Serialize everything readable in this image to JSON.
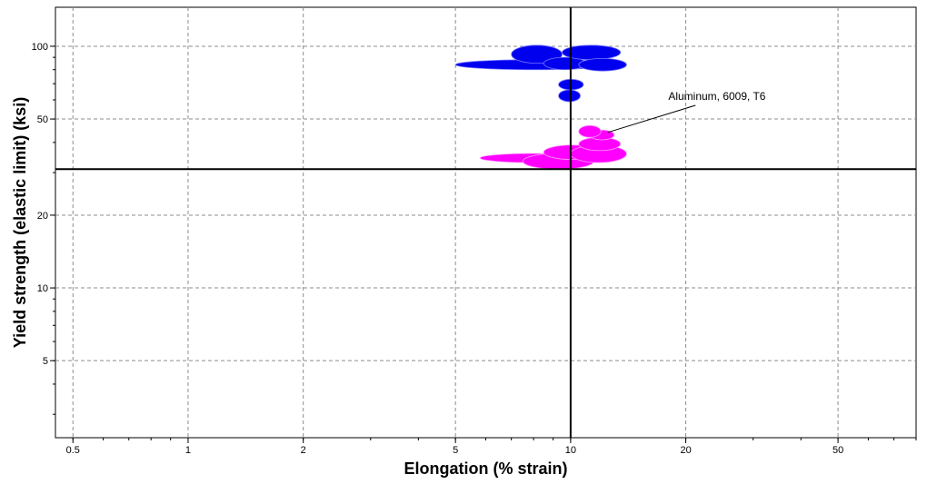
{
  "chart_data": {
    "type": "scatter",
    "xlabel": "Elongation (% strain)",
    "ylabel": "Yield strength (elastic limit) (ksi)",
    "x_scale": "log",
    "y_scale": "log",
    "xlim": [
      0.45,
      80
    ],
    "ylim": [
      2.4,
      145
    ],
    "grid": true,
    "x_ticks": [
      {
        "value": 0.5,
        "label": "0.5"
      },
      {
        "value": 1,
        "label": "1"
      },
      {
        "value": 2,
        "label": "2"
      },
      {
        "value": 5,
        "label": "5"
      },
      {
        "value": 10,
        "label": "10"
      },
      {
        "value": 20,
        "label": "20"
      },
      {
        "value": 50,
        "label": "50"
      }
    ],
    "y_ticks": [
      {
        "value": 5,
        "label": "5"
      },
      {
        "value": 10,
        "label": "10"
      },
      {
        "value": 20,
        "label": "20"
      },
      {
        "value": 50,
        "label": "50"
      },
      {
        "value": 100,
        "label": "100"
      }
    ],
    "reference_lines": {
      "x": 10,
      "y": 31
    },
    "series": [
      {
        "color": "#0000ee",
        "bubbles": [
          {
            "x_range": [
              5,
              13
            ],
            "y_range": [
              80,
              88
            ]
          },
          {
            "x_range": [
              7,
              9.5
            ],
            "y_range": [
              85,
              101
            ]
          },
          {
            "x_range": [
              8.5,
              11
            ],
            "y_range": [
              80,
              90
            ]
          },
          {
            "x_range": [
              9.5,
              13.5
            ],
            "y_range": [
              88,
              101
            ]
          },
          {
            "x_range": [
              10.5,
              14
            ],
            "y_range": [
              79,
              89
            ]
          },
          {
            "x_range": [
              9.3,
              10.8
            ],
            "y_range": [
              66,
              73
            ]
          },
          {
            "x_range": [
              9.3,
              10.6
            ],
            "y_range": [
              59,
              66
            ]
          }
        ]
      },
      {
        "color": "#ff00ff",
        "bubbles": [
          {
            "x_range": [
              5.8,
              11
            ],
            "y_range": [
              33,
              36
            ]
          },
          {
            "x_range": [
              7.5,
              11.5
            ],
            "y_range": [
              31,
              36
            ]
          },
          {
            "x_range": [
              8.5,
              12
            ],
            "y_range": [
              34,
              39
            ]
          },
          {
            "x_range": [
              10,
              14
            ],
            "y_range": [
              33,
              39
            ]
          },
          {
            "x_range": [
              10.5,
              13.5
            ],
            "y_range": [
              37,
              42
            ]
          },
          {
            "x_range": [
              11.2,
              13
            ],
            "y_range": [
              41,
              45
            ]
          },
          {
            "x_range": [
              10.5,
              12
            ],
            "y_range": [
              42,
              47
            ]
          }
        ]
      }
    ],
    "annotations": [
      {
        "text": "Aluminum, 6009, T6",
        "x": 18,
        "y": 60,
        "target_x": 12.5,
        "target_y": 44
      }
    ]
  }
}
